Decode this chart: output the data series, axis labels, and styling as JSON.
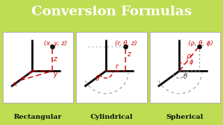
{
  "title": "Conversion Formulas",
  "title_bg": "#484848",
  "title_color": "#ffffff",
  "bg_color": "#bedd52",
  "panel_bg": "#ffffff",
  "panel_border": "#aaaaaa",
  "red": "#cc0000",
  "gray_dot": "#aaaaaa",
  "black": "#111111",
  "labels": [
    "Rectangular",
    "Cylindrical",
    "Spherical"
  ],
  "coords": [
    "(x, y, z)",
    "(r, θ, z)",
    "(ρ, θ, ϕ)"
  ]
}
